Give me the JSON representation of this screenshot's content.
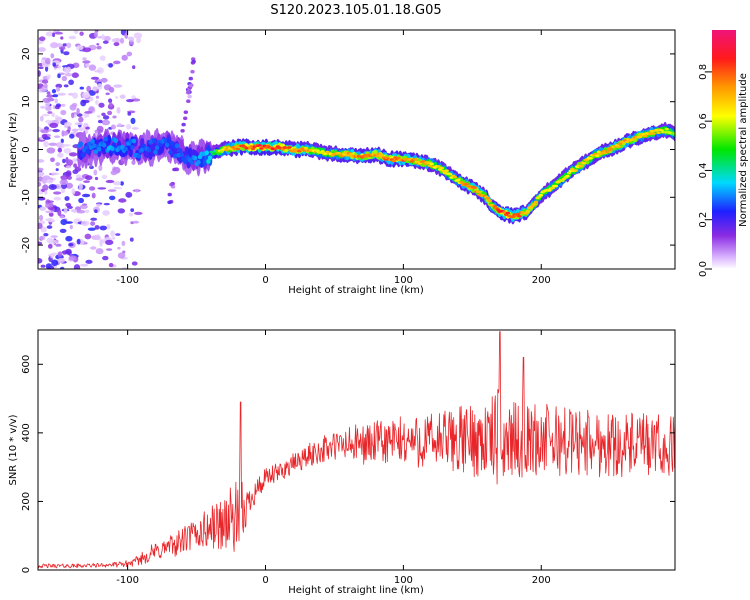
{
  "title": "S120.2023.105.01.18.G05",
  "colors": {
    "snr_line": "#e8262a",
    "frame": "#000000",
    "spectrum_background": "#ffffff"
  },
  "chart_data": [
    {
      "type": "heatmap",
      "xlabel": "Height of straight line (km)",
      "ylabel": "Frequency (Hz)",
      "xlim": [
        -165,
        297
      ],
      "ylim": [
        -25,
        25
      ],
      "xticks": [
        "-100",
        "0",
        "100",
        "200"
      ],
      "xtick_values": [
        -100,
        0,
        100,
        200
      ],
      "yticks": [
        "-20",
        "-10",
        "0",
        "10",
        "20"
      ],
      "ytick_values": [
        -20,
        -10,
        0,
        10,
        20
      ],
      "colorbar": {
        "label": "Normalized spectral amplitude",
        "ticks": [
          "0.0",
          "0.2",
          "0.4",
          "0.6",
          "0.8"
        ],
        "tick_values": [
          0.0,
          0.2,
          0.4,
          0.6,
          0.8
        ],
        "range": [
          0,
          0.97
        ],
        "colormap": "rainbow (white-violet-blue-cyan-green-yellow-orange-red-magenta)"
      },
      "ridge": {
        "x": [
          -130,
          -110,
          -90,
          -70,
          -55,
          -40,
          -30,
          -20,
          -10,
          0,
          10,
          20,
          30,
          40,
          50,
          60,
          70,
          80,
          90,
          100,
          110,
          120,
          130,
          140,
          150,
          160,
          165,
          170,
          175,
          180,
          185,
          190,
          195,
          200,
          210,
          220,
          230,
          240,
          250,
          260,
          270,
          280,
          290,
          297
        ],
        "frequency": [
          0,
          1,
          0,
          1,
          -2,
          -1,
          0,
          0.5,
          0.5,
          0.5,
          0.5,
          0,
          0,
          -0.5,
          -1,
          -1,
          -1.5,
          -1,
          -2,
          -2,
          -2.5,
          -3,
          -4.5,
          -6.5,
          -8,
          -10,
          -12,
          -13,
          -13.5,
          -14,
          -13.5,
          -13,
          -11.5,
          -9.5,
          -7.5,
          -5,
          -3,
          -1,
          0,
          1.5,
          2.5,
          3.5,
          4,
          3.5
        ],
        "amplitude": [
          0.3,
          0.35,
          0.3,
          0.3,
          0.3,
          0.4,
          0.75,
          0.85,
          0.9,
          0.95,
          0.9,
          0.85,
          0.8,
          0.7,
          0.75,
          0.8,
          0.85,
          0.8,
          0.85,
          0.85,
          0.8,
          0.75,
          0.7,
          0.75,
          0.85,
          0.8,
          0.8,
          0.9,
          0.9,
          0.85,
          0.85,
          0.8,
          0.75,
          0.7,
          0.7,
          0.7,
          0.75,
          0.75,
          0.8,
          0.8,
          0.8,
          0.75,
          0.7,
          0.65
        ]
      },
      "noise_region": {
        "x_range": [
          -165,
          -100
        ],
        "description": "scattered low-amplitude noise across all frequencies"
      }
    },
    {
      "type": "line",
      "xlabel": "Height of straight line (km)",
      "ylabel": "SNR (10 * v/v)",
      "xlim": [
        -165,
        297
      ],
      "ylim": [
        0,
        700
      ],
      "xticks": [
        "-100",
        "0",
        "100",
        "200"
      ],
      "xtick_values": [
        -100,
        0,
        100,
        200
      ],
      "yticks": [
        "0",
        "200",
        "400",
        "600"
      ],
      "ytick_values": [
        0,
        200,
        400,
        600
      ],
      "envelope": {
        "x": [
          -165,
          -140,
          -120,
          -105,
          -95,
          -85,
          -75,
          -65,
          -55,
          -45,
          -35,
          -25,
          -18,
          -15,
          -10,
          -5,
          0,
          10,
          20,
          30,
          40,
          50,
          60,
          80,
          100,
          120,
          140,
          160,
          170,
          180,
          200,
          220,
          240,
          260,
          280,
          297
        ],
        "mean": [
          12,
          12,
          14,
          16,
          22,
          45,
          60,
          75,
          95,
          115,
          130,
          150,
          140,
          170,
          220,
          240,
          265,
          285,
          310,
          330,
          350,
          360,
          365,
          370,
          375,
          375,
          380,
          380,
          385,
          380,
          380,
          375,
          370,
          365,
          360,
          355
        ],
        "spread": [
          6,
          6,
          6,
          8,
          12,
          25,
          30,
          35,
          45,
          55,
          75,
          95,
          130,
          60,
          40,
          40,
          30,
          30,
          30,
          35,
          40,
          45,
          55,
          65,
          75,
          85,
          100,
          115,
          150,
          110,
          110,
          105,
          100,
          95,
          95,
          95
        ]
      },
      "peaks": [
        {
          "x": -18,
          "y": 490
        },
        {
          "x": 170,
          "y": 695
        },
        {
          "x": 187,
          "y": 620
        }
      ]
    }
  ]
}
